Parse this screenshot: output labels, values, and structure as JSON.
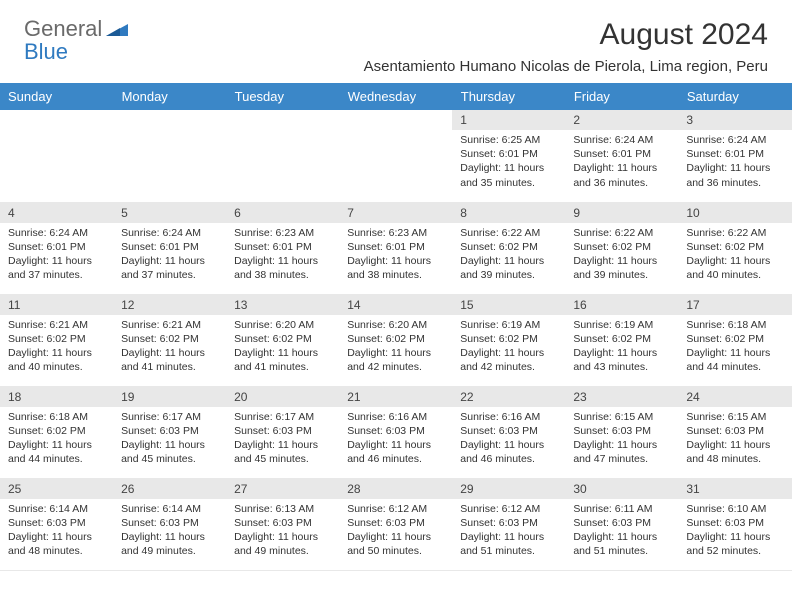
{
  "logo": {
    "word1": "General",
    "word2": "Blue"
  },
  "title": "August 2024",
  "location": "Asentamiento Humano Nicolas de Pierola, Lima region, Peru",
  "colors": {
    "header_bg": "#3b87c8",
    "header_text": "#ffffff",
    "daynum_bg": "#e8e8e8",
    "text": "#333333",
    "logo_gray": "#6a6a6a",
    "logo_blue": "#2f7ac0"
  },
  "weekdays": [
    "Sunday",
    "Monday",
    "Tuesday",
    "Wednesday",
    "Thursday",
    "Friday",
    "Saturday"
  ],
  "weeks": [
    [
      {
        "empty": true
      },
      {
        "empty": true
      },
      {
        "empty": true
      },
      {
        "empty": true
      },
      {
        "day": "1",
        "sunrise": "Sunrise: 6:25 AM",
        "sunset": "Sunset: 6:01 PM",
        "daylight": "Daylight: 11 hours and 35 minutes."
      },
      {
        "day": "2",
        "sunrise": "Sunrise: 6:24 AM",
        "sunset": "Sunset: 6:01 PM",
        "daylight": "Daylight: 11 hours and 36 minutes."
      },
      {
        "day": "3",
        "sunrise": "Sunrise: 6:24 AM",
        "sunset": "Sunset: 6:01 PM",
        "daylight": "Daylight: 11 hours and 36 minutes."
      }
    ],
    [
      {
        "day": "4",
        "sunrise": "Sunrise: 6:24 AM",
        "sunset": "Sunset: 6:01 PM",
        "daylight": "Daylight: 11 hours and 37 minutes."
      },
      {
        "day": "5",
        "sunrise": "Sunrise: 6:24 AM",
        "sunset": "Sunset: 6:01 PM",
        "daylight": "Daylight: 11 hours and 37 minutes."
      },
      {
        "day": "6",
        "sunrise": "Sunrise: 6:23 AM",
        "sunset": "Sunset: 6:01 PM",
        "daylight": "Daylight: 11 hours and 38 minutes."
      },
      {
        "day": "7",
        "sunrise": "Sunrise: 6:23 AM",
        "sunset": "Sunset: 6:01 PM",
        "daylight": "Daylight: 11 hours and 38 minutes."
      },
      {
        "day": "8",
        "sunrise": "Sunrise: 6:22 AM",
        "sunset": "Sunset: 6:02 PM",
        "daylight": "Daylight: 11 hours and 39 minutes."
      },
      {
        "day": "9",
        "sunrise": "Sunrise: 6:22 AM",
        "sunset": "Sunset: 6:02 PM",
        "daylight": "Daylight: 11 hours and 39 minutes."
      },
      {
        "day": "10",
        "sunrise": "Sunrise: 6:22 AM",
        "sunset": "Sunset: 6:02 PM",
        "daylight": "Daylight: 11 hours and 40 minutes."
      }
    ],
    [
      {
        "day": "11",
        "sunrise": "Sunrise: 6:21 AM",
        "sunset": "Sunset: 6:02 PM",
        "daylight": "Daylight: 11 hours and 40 minutes."
      },
      {
        "day": "12",
        "sunrise": "Sunrise: 6:21 AM",
        "sunset": "Sunset: 6:02 PM",
        "daylight": "Daylight: 11 hours and 41 minutes."
      },
      {
        "day": "13",
        "sunrise": "Sunrise: 6:20 AM",
        "sunset": "Sunset: 6:02 PM",
        "daylight": "Daylight: 11 hours and 41 minutes."
      },
      {
        "day": "14",
        "sunrise": "Sunrise: 6:20 AM",
        "sunset": "Sunset: 6:02 PM",
        "daylight": "Daylight: 11 hours and 42 minutes."
      },
      {
        "day": "15",
        "sunrise": "Sunrise: 6:19 AM",
        "sunset": "Sunset: 6:02 PM",
        "daylight": "Daylight: 11 hours and 42 minutes."
      },
      {
        "day": "16",
        "sunrise": "Sunrise: 6:19 AM",
        "sunset": "Sunset: 6:02 PM",
        "daylight": "Daylight: 11 hours and 43 minutes."
      },
      {
        "day": "17",
        "sunrise": "Sunrise: 6:18 AM",
        "sunset": "Sunset: 6:02 PM",
        "daylight": "Daylight: 11 hours and 44 minutes."
      }
    ],
    [
      {
        "day": "18",
        "sunrise": "Sunrise: 6:18 AM",
        "sunset": "Sunset: 6:02 PM",
        "daylight": "Daylight: 11 hours and 44 minutes."
      },
      {
        "day": "19",
        "sunrise": "Sunrise: 6:17 AM",
        "sunset": "Sunset: 6:03 PM",
        "daylight": "Daylight: 11 hours and 45 minutes."
      },
      {
        "day": "20",
        "sunrise": "Sunrise: 6:17 AM",
        "sunset": "Sunset: 6:03 PM",
        "daylight": "Daylight: 11 hours and 45 minutes."
      },
      {
        "day": "21",
        "sunrise": "Sunrise: 6:16 AM",
        "sunset": "Sunset: 6:03 PM",
        "daylight": "Daylight: 11 hours and 46 minutes."
      },
      {
        "day": "22",
        "sunrise": "Sunrise: 6:16 AM",
        "sunset": "Sunset: 6:03 PM",
        "daylight": "Daylight: 11 hours and 46 minutes."
      },
      {
        "day": "23",
        "sunrise": "Sunrise: 6:15 AM",
        "sunset": "Sunset: 6:03 PM",
        "daylight": "Daylight: 11 hours and 47 minutes."
      },
      {
        "day": "24",
        "sunrise": "Sunrise: 6:15 AM",
        "sunset": "Sunset: 6:03 PM",
        "daylight": "Daylight: 11 hours and 48 minutes."
      }
    ],
    [
      {
        "day": "25",
        "sunrise": "Sunrise: 6:14 AM",
        "sunset": "Sunset: 6:03 PM",
        "daylight": "Daylight: 11 hours and 48 minutes."
      },
      {
        "day": "26",
        "sunrise": "Sunrise: 6:14 AM",
        "sunset": "Sunset: 6:03 PM",
        "daylight": "Daylight: 11 hours and 49 minutes."
      },
      {
        "day": "27",
        "sunrise": "Sunrise: 6:13 AM",
        "sunset": "Sunset: 6:03 PM",
        "daylight": "Daylight: 11 hours and 49 minutes."
      },
      {
        "day": "28",
        "sunrise": "Sunrise: 6:12 AM",
        "sunset": "Sunset: 6:03 PM",
        "daylight": "Daylight: 11 hours and 50 minutes."
      },
      {
        "day": "29",
        "sunrise": "Sunrise: 6:12 AM",
        "sunset": "Sunset: 6:03 PM",
        "daylight": "Daylight: 11 hours and 51 minutes."
      },
      {
        "day": "30",
        "sunrise": "Sunrise: 6:11 AM",
        "sunset": "Sunset: 6:03 PM",
        "daylight": "Daylight: 11 hours and 51 minutes."
      },
      {
        "day": "31",
        "sunrise": "Sunrise: 6:10 AM",
        "sunset": "Sunset: 6:03 PM",
        "daylight": "Daylight: 11 hours and 52 minutes."
      }
    ]
  ]
}
